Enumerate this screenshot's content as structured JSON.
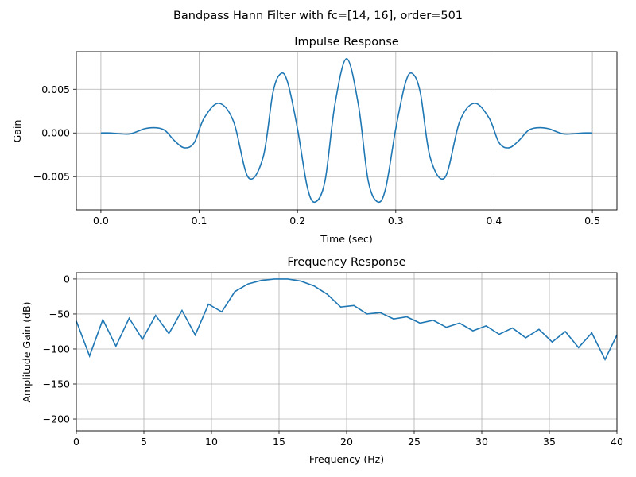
{
  "figure": {
    "suptitle": "Bandpass Hann Filter with fc=[14, 16], order=501"
  },
  "colors": {
    "line": "#1f77b4",
    "grid": "#b0b0b0",
    "axes": "#000000",
    "background": "#ffffff"
  },
  "chart_data": [
    {
      "type": "line",
      "title": "Impulse Response",
      "xlabel": "Time (sec)",
      "ylabel": "Gain",
      "xlim": [
        -0.025,
        0.525
      ],
      "ylim": [
        -0.0088,
        0.0093
      ],
      "grid": true,
      "xticks": [
        0.0,
        0.1,
        0.2,
        0.3,
        0.4,
        0.5
      ],
      "xtick_labels": [
        "0.0",
        "0.1",
        "0.2",
        "0.3",
        "0.4",
        "0.5"
      ],
      "yticks": [
        -0.005,
        0.0,
        0.005
      ],
      "ytick_labels": [
        "−0.005",
        "0.000",
        "0.005"
      ],
      "series": [
        {
          "x": [
            0.0,
            0.01,
            0.02,
            0.03,
            0.04,
            0.045,
            0.055,
            0.065,
            0.075,
            0.085,
            0.095,
            0.105,
            0.12,
            0.135,
            0.15,
            0.165,
            0.175,
            0.183,
            0.19,
            0.2,
            0.21,
            0.218,
            0.228,
            0.238,
            0.25,
            0.262,
            0.272,
            0.282,
            0.29,
            0.3,
            0.31,
            0.317,
            0.325,
            0.335,
            0.35,
            0.365,
            0.38,
            0.395,
            0.405,
            0.415,
            0.425,
            0.435,
            0.445,
            0.455,
            0.46,
            0.47,
            0.48,
            0.49,
            0.5
          ],
          "y": [
            0.0,
            0.0,
            -0.0001,
            -0.0001,
            0.0003,
            0.0005,
            0.0006,
            0.0003,
            -0.0009,
            -0.0017,
            -0.0011,
            0.0017,
            0.0034,
            0.0013,
            -0.0051,
            -0.0028,
            0.0046,
            0.0068,
            0.0058,
            0.0005,
            -0.0062,
            -0.0079,
            -0.0055,
            0.0032,
            0.0085,
            0.0032,
            -0.0055,
            -0.0079,
            -0.0062,
            0.0005,
            0.0058,
            0.0068,
            0.0046,
            -0.0028,
            -0.0051,
            0.0013,
            0.0034,
            0.0017,
            -0.0011,
            -0.0017,
            -0.0009,
            0.0003,
            0.0006,
            0.0005,
            0.0003,
            -0.0001,
            -0.0001,
            0.0,
            0.0
          ]
        }
      ]
    },
    {
      "type": "line",
      "title": "Frequency Response",
      "xlabel": "Frequency (Hz)",
      "ylabel": "Amplitude Gain (dB)",
      "xlim": [
        0,
        40
      ],
      "ylim": [
        -217,
        9
      ],
      "grid": true,
      "xticks": [
        0,
        5,
        10,
        15,
        20,
        25,
        30,
        35,
        40
      ],
      "xtick_labels": [
        "0",
        "5",
        "10",
        "15",
        "20",
        "25",
        "30",
        "35",
        "40"
      ],
      "yticks": [
        -200,
        -150,
        -100,
        -50,
        0
      ],
      "ytick_labels": [
        "−200",
        "−150",
        "−100",
        "−50",
        "0"
      ],
      "series": [
        {
          "x": [
            0.0,
            0.98,
            1.96,
            2.93,
            3.91,
            4.89,
            5.87,
            6.85,
            7.82,
            8.8,
            9.78,
            10.76,
            11.73,
            12.71,
            13.69,
            14.67,
            15.65,
            16.62,
            17.6,
            18.58,
            19.56,
            20.54,
            21.51,
            22.49,
            23.47,
            24.45,
            25.43,
            26.41,
            27.38,
            28.36,
            29.34,
            30.32,
            31.29,
            32.27,
            33.25,
            34.23,
            35.21,
            36.18,
            37.16,
            38.14,
            39.12,
            40.0
          ],
          "y": [
            -60,
            -110,
            -58,
            -96,
            -56,
            -86,
            -52,
            -78,
            -45,
            -80,
            -36,
            -47,
            -18,
            -7,
            -2,
            0,
            0,
            -3,
            -10,
            -22,
            -40,
            -38,
            -50,
            -48,
            -57,
            -54,
            -63,
            -59,
            -69,
            -63,
            -74,
            -67,
            -79,
            -70,
            -84,
            -72,
            -90,
            -75,
            -98,
            -77,
            -115,
            -80
          ]
        }
      ]
    }
  ]
}
